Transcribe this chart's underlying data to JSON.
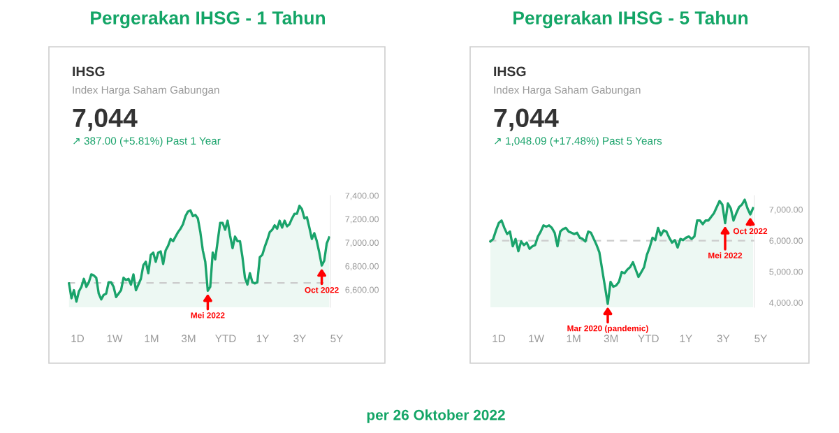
{
  "chart_data": [
    {
      "type": "area",
      "title": "Pergerakan IHSG - 1 Tahun",
      "subtitle": "IHSG",
      "categories": [
        null,
        null,
        null,
        null,
        null,
        null,
        null,
        null,
        null,
        null,
        null,
        null,
        null,
        null,
        null,
        null,
        null,
        null,
        null,
        null,
        null,
        null,
        null,
        null,
        null,
        null,
        null,
        null,
        null,
        null,
        null,
        null,
        null,
        null,
        null,
        null,
        null,
        null,
        null,
        null,
        null,
        null,
        null,
        null,
        null,
        null,
        null,
        null,
        null,
        null,
        null,
        null,
        null,
        null,
        null,
        null,
        null,
        null,
        null,
        null,
        null,
        null,
        null,
        null,
        null,
        null,
        null,
        null,
        null,
        null,
        null,
        null,
        null,
        null,
        null,
        null,
        null,
        null,
        null,
        null,
        null,
        null,
        null,
        null,
        null,
        null,
        null,
        null,
        null,
        null,
        null,
        null,
        null,
        null,
        null,
        null,
        null,
        null,
        null,
        null,
        null,
        null,
        null,
        null,
        null,
        null
      ],
      "series": [
        {
          "color": "#1aa36b",
          "values": [
            6653,
            6527,
            6595,
            6498,
            6585,
            6624,
            6692,
            6624,
            6663,
            6730,
            6721,
            6701,
            6566,
            6517,
            6556,
            6566,
            6663,
            6663,
            6624,
            6537,
            6566,
            6595,
            6701,
            6682,
            6692,
            6643,
            6730,
            6595,
            6643,
            6692,
            6808,
            6837,
            6740,
            6896,
            6915,
            6837,
            6915,
            6925,
            6818,
            6934,
            6973,
            7031,
            7012,
            7051,
            7089,
            7118,
            7157,
            7225,
            7264,
            7274,
            7225,
            7235,
            7206,
            7089,
            6934,
            6837,
            6590,
            6624,
            6915,
            6857,
            7012,
            7167,
            7167,
            7109,
            7186,
            7060,
            6953,
            7051,
            7012,
            7012,
            6876,
            6701,
            6643,
            6740,
            6663,
            6653,
            6663,
            6876,
            6896,
            6964,
            7022,
            7089,
            7109,
            7147,
            7118,
            7186,
            7128,
            7186,
            7138,
            7157,
            7206,
            7245,
            7245,
            7313,
            7284,
            7206,
            7216,
            7128,
            7031,
            7080,
            7012,
            6915,
            6805,
            6847,
            6992,
            7044
          ]
        }
      ],
      "ylim": [
        6450,
        7400
      ],
      "yticks": [
        {
          "value": 6600,
          "label": "6,600.00"
        },
        {
          "value": 6800,
          "label": "6,800.00"
        },
        {
          "value": 7000,
          "label": "7,000.00"
        },
        {
          "value": 7200,
          "label": "7,200.00"
        },
        {
          "value": 7400,
          "label": "7,400.00"
        }
      ],
      "tick_labels": "y",
      "grid": false,
      "legend": false,
      "ref_lines": [
        {
          "axis": "y",
          "value": 6657,
          "color": "#cccccc",
          "line_style": "dashed"
        }
      ],
      "annotations": [
        "Index Harga Saham Gabungan",
        "7,044",
        "↗ 387.00 (+5.81%) Past 1 Year",
        "1D",
        "1W",
        "1M",
        "3M",
        "YTD",
        "1Y",
        "3Y",
        "5Y",
        {
          "text": "Mei 2022",
          "y": 6590
        },
        {
          "text": "Oct 2022",
          "y": 6805
        }
      ]
    },
    {
      "type": "area",
      "title": "Pergerakan IHSG - 5 Tahun",
      "subtitle": "IHSG",
      "categories": [
        null,
        null,
        null,
        null,
        null,
        null,
        null,
        null,
        null,
        null,
        null,
        null,
        null,
        null,
        null,
        null,
        null,
        null,
        null,
        null,
        null,
        null,
        null,
        null,
        null,
        null,
        null,
        null,
        null,
        null,
        null,
        null,
        null,
        null,
        null,
        null,
        null,
        null,
        null,
        null,
        null,
        null,
        null,
        null,
        null,
        null,
        null,
        null,
        null,
        null,
        null,
        null,
        null,
        null,
        null,
        null,
        null,
        null,
        null,
        null,
        null,
        null,
        null,
        null,
        null,
        null,
        null,
        null,
        null,
        null,
        null,
        null,
        null,
        null,
        null,
        null,
        null,
        null,
        null,
        null,
        null,
        null,
        null,
        null,
        null,
        null,
        null,
        null,
        null,
        null,
        null,
        null,
        null,
        null,
        null
      ],
      "series": [
        {
          "color": "#1aa36b",
          "values": [
            5973,
            6052,
            6328,
            6565,
            6645,
            6407,
            6210,
            6289,
            5815,
            6052,
            5657,
            5973,
            5855,
            5934,
            5736,
            5815,
            5855,
            6131,
            6289,
            6487,
            6447,
            6487,
            6407,
            6250,
            5815,
            6289,
            6368,
            6407,
            6289,
            6250,
            6210,
            6250,
            6092,
            6052,
            5973,
            6289,
            6250,
            6052,
            5855,
            5618,
            5065,
            4512,
            3960,
            4670,
            4512,
            4551,
            4670,
            4985,
            4946,
            5065,
            5144,
            5302,
            5065,
            4828,
            4985,
            5144,
            5539,
            5776,
            6092,
            6013,
            6407,
            6171,
            6328,
            6289,
            6092,
            5934,
            6013,
            5776,
            6052,
            6013,
            6092,
            6131,
            6052,
            6131,
            6645,
            6645,
            6526,
            6645,
            6645,
            6763,
            6881,
            7079,
            7277,
            7158,
            6560,
            7198,
            7040,
            6645,
            6881,
            7079,
            7158,
            7316,
            7040,
            6842,
            7044
          ]
        }
      ],
      "ylim": [
        3850,
        7450
      ],
      "yticks": [
        {
          "value": 4000,
          "label": "4,000.00"
        },
        {
          "value": 5000,
          "label": "5,000.00"
        },
        {
          "value": 6000,
          "label": "6,000.00"
        },
        {
          "value": 7000,
          "label": "7,000.00"
        }
      ],
      "tick_labels": "y",
      "grid": false,
      "legend": false,
      "ref_lines": [
        {
          "axis": "y",
          "value": 5996,
          "color": "#cccccc",
          "line_style": "dashed"
        }
      ],
      "annotations": [
        "Index Harga Saham Gabungan",
        "7,044",
        "↗ 1,048.09 (+17.48%) Past 5 Years",
        "1D",
        "1W",
        "1M",
        "3M",
        "YTD",
        "1Y",
        "3Y",
        "5Y",
        {
          "text": "Mar 2020 (pandemic)",
          "y": 3960
        },
        {
          "text": "Mei 2022",
          "y": 6560
        },
        {
          "text": "Oct 2022",
          "y": 6842
        },
        "per 26 Oktober 2022"
      ]
    }
  ]
}
